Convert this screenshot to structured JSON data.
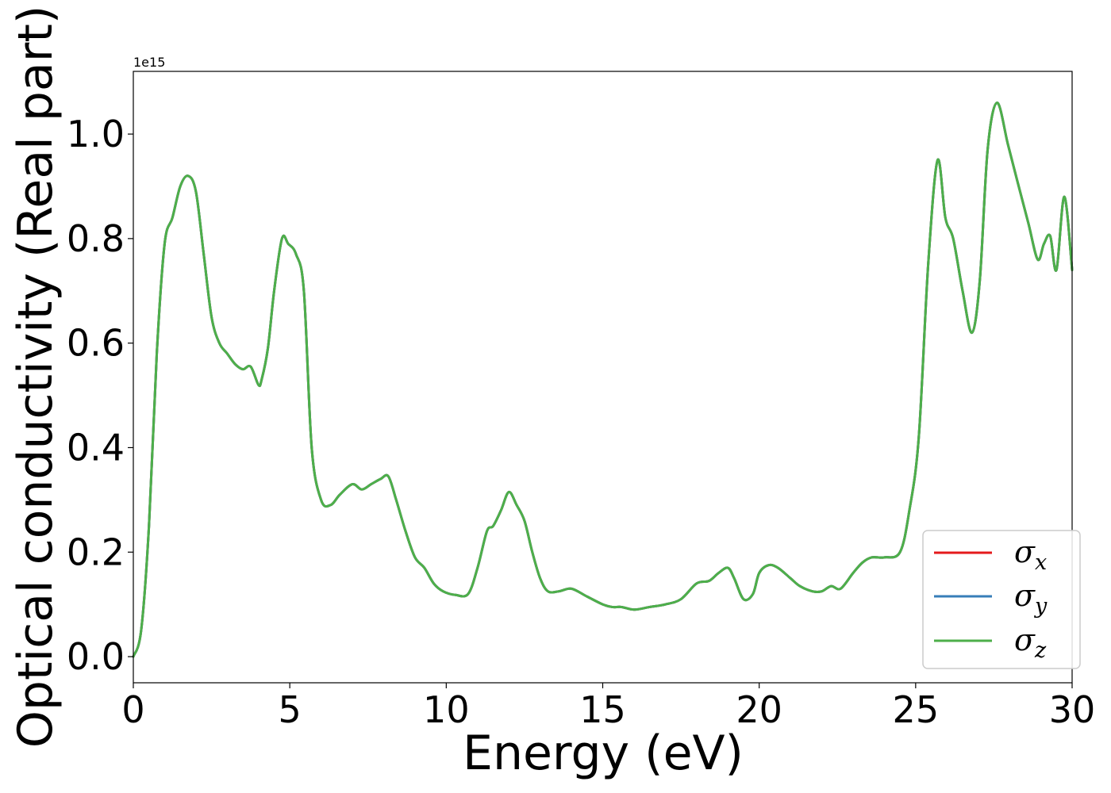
{
  "chart_data": {
    "type": "line",
    "title": "",
    "xlabel": "Energy (eV)",
    "ylabel": "Optical conductivity (Real part)",
    "y_offset_label": "1e15",
    "y_scale_factor": 1000000000000000.0,
    "xlim": [
      0,
      30
    ],
    "ylim": [
      -0.05,
      1.12
    ],
    "x_ticks": [
      0,
      5,
      10,
      15,
      20,
      25,
      30
    ],
    "x_tick_labels": [
      "0",
      "5",
      "10",
      "15",
      "20",
      "25",
      "30"
    ],
    "y_ticks": [
      0.0,
      0.2,
      0.4,
      0.6,
      0.8,
      1.0
    ],
    "y_tick_labels": [
      "0.0",
      "0.2",
      "0.4",
      "0.6",
      "0.8",
      "1.0"
    ],
    "grid": false,
    "legend_position": "bottom-right",
    "x": [
      0,
      0.25,
      0.5,
      0.75,
      1.0,
      1.25,
      1.5,
      1.75,
      2.0,
      2.25,
      2.5,
      2.75,
      3.0,
      3.25,
      3.5,
      3.75,
      4.0,
      4.1,
      4.3,
      4.5,
      4.75,
      4.95,
      5.2,
      5.45,
      5.7,
      6.0,
      6.3,
      6.6,
      7.0,
      7.3,
      7.6,
      7.9,
      8.15,
      8.4,
      8.7,
      9.0,
      9.3,
      9.6,
      9.9,
      10.3,
      10.7,
      11.0,
      11.3,
      11.5,
      11.75,
      12.0,
      12.25,
      12.5,
      12.75,
      13.0,
      13.25,
      13.6,
      14.0,
      14.5,
      15.0,
      15.3,
      15.6,
      16.0,
      16.5,
      17.0,
      17.5,
      18.0,
      18.4,
      18.7,
      19.0,
      19.2,
      19.5,
      19.8,
      20.0,
      20.3,
      20.6,
      21.0,
      21.3,
      21.7,
      22.0,
      22.3,
      22.6,
      23.0,
      23.3,
      23.6,
      24.0,
      24.5,
      24.8,
      25.1,
      25.4,
      25.7,
      25.95,
      26.2,
      26.5,
      26.8,
      27.05,
      27.3,
      27.6,
      27.95,
      28.25,
      28.6,
      28.9,
      29.1,
      29.3,
      29.5,
      29.75,
      30.0
    ],
    "series": [
      {
        "name": "σx",
        "color": "#e41a1c",
        "y": [
          0.0,
          0.05,
          0.25,
          0.58,
          0.79,
          0.84,
          0.9,
          0.92,
          0.89,
          0.77,
          0.65,
          0.6,
          0.58,
          0.56,
          0.55,
          0.555,
          0.52,
          0.53,
          0.59,
          0.7,
          0.8,
          0.79,
          0.77,
          0.7,
          0.4,
          0.3,
          0.29,
          0.31,
          0.33,
          0.32,
          0.33,
          0.34,
          0.345,
          0.3,
          0.24,
          0.19,
          0.17,
          0.14,
          0.125,
          0.118,
          0.12,
          0.17,
          0.24,
          0.25,
          0.28,
          0.315,
          0.29,
          0.26,
          0.2,
          0.15,
          0.125,
          0.125,
          0.13,
          0.115,
          0.1,
          0.095,
          0.095,
          0.09,
          0.095,
          0.1,
          0.11,
          0.14,
          0.145,
          0.16,
          0.17,
          0.15,
          0.11,
          0.12,
          0.16,
          0.175,
          0.17,
          0.15,
          0.135,
          0.125,
          0.125,
          0.135,
          0.13,
          0.16,
          0.18,
          0.19,
          0.19,
          0.2,
          0.28,
          0.42,
          0.75,
          0.95,
          0.84,
          0.8,
          0.7,
          0.62,
          0.72,
          0.97,
          1.06,
          0.98,
          0.91,
          0.83,
          0.76,
          0.79,
          0.805,
          0.74,
          0.88,
          0.74
        ]
      },
      {
        "name": "σy",
        "color": "#377eb8",
        "y": [
          0.0,
          0.05,
          0.25,
          0.58,
          0.79,
          0.84,
          0.9,
          0.92,
          0.89,
          0.77,
          0.65,
          0.6,
          0.58,
          0.56,
          0.55,
          0.555,
          0.52,
          0.53,
          0.59,
          0.7,
          0.8,
          0.79,
          0.77,
          0.7,
          0.4,
          0.3,
          0.29,
          0.31,
          0.33,
          0.32,
          0.33,
          0.34,
          0.345,
          0.3,
          0.24,
          0.19,
          0.17,
          0.14,
          0.125,
          0.118,
          0.12,
          0.17,
          0.24,
          0.25,
          0.28,
          0.315,
          0.29,
          0.26,
          0.2,
          0.15,
          0.125,
          0.125,
          0.13,
          0.115,
          0.1,
          0.095,
          0.095,
          0.09,
          0.095,
          0.1,
          0.11,
          0.14,
          0.145,
          0.16,
          0.17,
          0.15,
          0.11,
          0.12,
          0.16,
          0.175,
          0.17,
          0.15,
          0.135,
          0.125,
          0.125,
          0.135,
          0.13,
          0.16,
          0.18,
          0.19,
          0.19,
          0.2,
          0.28,
          0.42,
          0.75,
          0.95,
          0.84,
          0.8,
          0.7,
          0.62,
          0.72,
          0.97,
          1.06,
          0.98,
          0.91,
          0.83,
          0.76,
          0.79,
          0.805,
          0.74,
          0.88,
          0.74
        ]
      },
      {
        "name": "σz",
        "color": "#4daf4a",
        "y": [
          0.0,
          0.05,
          0.25,
          0.58,
          0.79,
          0.84,
          0.9,
          0.92,
          0.89,
          0.77,
          0.65,
          0.6,
          0.58,
          0.56,
          0.55,
          0.555,
          0.52,
          0.53,
          0.59,
          0.7,
          0.8,
          0.79,
          0.77,
          0.7,
          0.4,
          0.3,
          0.29,
          0.31,
          0.33,
          0.32,
          0.33,
          0.34,
          0.345,
          0.3,
          0.24,
          0.19,
          0.17,
          0.14,
          0.125,
          0.118,
          0.12,
          0.17,
          0.24,
          0.25,
          0.28,
          0.315,
          0.29,
          0.26,
          0.2,
          0.15,
          0.125,
          0.125,
          0.13,
          0.115,
          0.1,
          0.095,
          0.095,
          0.09,
          0.095,
          0.1,
          0.11,
          0.14,
          0.145,
          0.16,
          0.17,
          0.15,
          0.11,
          0.12,
          0.16,
          0.175,
          0.17,
          0.15,
          0.135,
          0.125,
          0.125,
          0.135,
          0.13,
          0.16,
          0.18,
          0.19,
          0.19,
          0.2,
          0.28,
          0.42,
          0.75,
          0.95,
          0.84,
          0.8,
          0.7,
          0.62,
          0.72,
          0.97,
          1.06,
          0.98,
          0.91,
          0.83,
          0.76,
          0.79,
          0.805,
          0.74,
          0.88,
          0.74
        ]
      }
    ],
    "legend": {
      "entries": [
        {
          "label_base": "σ",
          "label_sub": "x",
          "color": "#e41a1c"
        },
        {
          "label_base": "σ",
          "label_sub": "y",
          "color": "#377eb8"
        },
        {
          "label_base": "σ",
          "label_sub": "z",
          "color": "#4daf4a"
        }
      ]
    }
  }
}
